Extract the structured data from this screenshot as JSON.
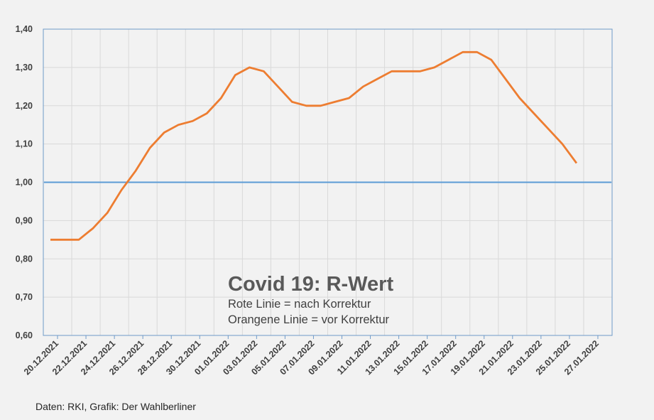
{
  "chart_data": {
    "type": "line",
    "title": "Covid 19: R-Wert",
    "subtitle_lines": [
      "Rote Linie = nach Korrektur",
      "Orangene Linie = vor Korrektur"
    ],
    "source": "Daten: RKI, Grafik: Der Wahlberliner",
    "ylim": [
      0.6,
      1.4
    ],
    "yticks": [
      0.6,
      0.7,
      0.8,
      0.9,
      1.0,
      1.1,
      1.2,
      1.3,
      1.4
    ],
    "ytick_labels": [
      "0,60",
      "0,70",
      "0,80",
      "0,90",
      "1,00",
      "1,10",
      "1,20",
      "1,30",
      "1,40"
    ],
    "xtick_labels": [
      "20.12.2021",
      "22.12.2021",
      "24.12.2021",
      "26.12.2021",
      "28.12.2021",
      "30.12.2021",
      "01.01.2022",
      "03.01.2022",
      "05.01.2022",
      "07.01.2022",
      "09.01.2022",
      "11.01.2022",
      "13.01.2022",
      "15.01.2022",
      "17.01.2022",
      "19.01.2022",
      "21.01.2022",
      "23.01.2022",
      "25.01.2022",
      "27.01.2022"
    ],
    "grid": true,
    "series": [
      {
        "color": "#ed7d31",
        "values": [
          0.85,
          0.85,
          0.85,
          0.88,
          0.92,
          0.98,
          1.03,
          1.09,
          1.13,
          1.15,
          1.16,
          1.18,
          1.22,
          1.28,
          1.3,
          1.29,
          1.25,
          1.21,
          1.2,
          1.2,
          1.21,
          1.22,
          1.25,
          1.27,
          1.29,
          1.29,
          1.29,
          1.3,
          1.32,
          1.34,
          1.34,
          1.32,
          1.27,
          1.22,
          1.18,
          1.14,
          1.1,
          1.05
        ]
      },
      {
        "color": "#5b9bd5",
        "values": [
          1.0,
          1.0,
          1.0,
          1.0,
          1.0,
          1.0,
          1.0,
          1.0,
          1.0,
          1.0,
          1.0,
          1.0,
          1.0,
          1.0,
          1.0,
          1.0,
          1.0,
          1.0,
          1.0,
          1.0,
          1.0,
          1.0,
          1.0,
          1.0,
          1.0,
          1.0,
          1.0,
          1.0,
          1.0,
          1.0,
          1.0,
          1.0,
          1.0,
          1.0,
          1.0,
          1.0,
          1.0,
          1.0,
          1.0,
          1.0
        ]
      }
    ]
  }
}
